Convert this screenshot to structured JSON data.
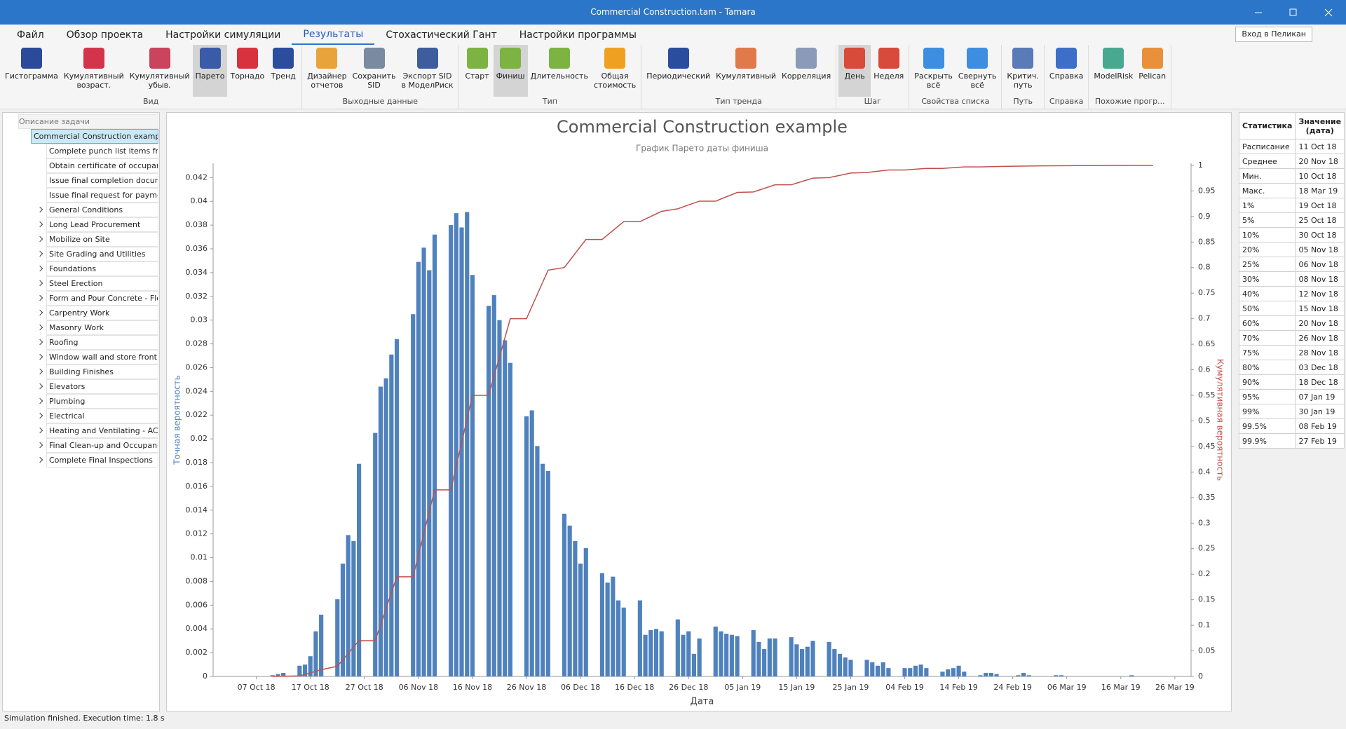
{
  "window": {
    "title": "Commercial Construction.tam - Tamara"
  },
  "menu": {
    "tabs": [
      "Файл",
      "Обзор проекта",
      "Настройки симуляции",
      "Результаты",
      "Стохастический Гант",
      "Настройки программы"
    ],
    "active": 3,
    "login": "Вход в Пеликан"
  },
  "ribbon": {
    "groups": [
      {
        "label": "Вид",
        "buttons": [
          {
            "label": "Гистограмма"
          },
          {
            "label": "Кумулятивный\nвозраст."
          },
          {
            "label": "Кумулятивный\nубыв."
          },
          {
            "label": "Парето",
            "selected": true
          },
          {
            "label": "Торнадо"
          },
          {
            "label": "Тренд"
          }
        ]
      },
      {
        "label": "Выходные данные",
        "buttons": [
          {
            "label": "Дизайнер\nотчетов"
          },
          {
            "label": "Сохранить\nSID"
          },
          {
            "label": "Экспорт SID\nв МоделРиск"
          }
        ]
      },
      {
        "label": "Тип",
        "buttons": [
          {
            "label": "Старт"
          },
          {
            "label": "Финиш",
            "selected": true
          },
          {
            "label": "Длительность"
          },
          {
            "label": "Общая\nстоимость"
          }
        ]
      },
      {
        "label": "Тип тренда",
        "buttons": [
          {
            "label": "Периодический"
          },
          {
            "label": "Кумулятивный"
          },
          {
            "label": "Корреляция"
          }
        ]
      },
      {
        "label": "Шаг",
        "buttons": [
          {
            "label": "День",
            "selected": true
          },
          {
            "label": "Неделя"
          }
        ]
      },
      {
        "label": "Свойства списка",
        "buttons": [
          {
            "label": "Раскрыть\nвсё"
          },
          {
            "label": "Свернуть\nвсё"
          }
        ]
      },
      {
        "label": "Путь",
        "buttons": [
          {
            "label": "Критич.\nпуть"
          }
        ]
      },
      {
        "label": "Справка",
        "buttons": [
          {
            "label": "Справка"
          }
        ]
      },
      {
        "label": "Похожие прогр...",
        "buttons": [
          {
            "label": "ModelRisk"
          },
          {
            "label": "Pelican"
          }
        ]
      }
    ]
  },
  "tree": {
    "header": "Описание задачи",
    "root": "Commercial Construction example",
    "children": [
      {
        "label": "Complete punch list items from..."
      },
      {
        "label": "Obtain certificate of occupancy"
      },
      {
        "label": "Issue final completion docume..."
      },
      {
        "label": "Issue final request for payment"
      },
      {
        "label": "General Conditions",
        "collapsed": true
      },
      {
        "label": "Long Lead Procurement",
        "collapsed": true
      },
      {
        "label": "Mobilize on Site",
        "collapsed": true
      },
      {
        "label": "Site Grading and Utilities",
        "collapsed": true
      },
      {
        "label": "Foundations",
        "collapsed": true
      },
      {
        "label": "Steel Erection",
        "collapsed": true
      },
      {
        "label": "Form and Pour Concrete - Floo...",
        "collapsed": true
      },
      {
        "label": "Carpentry Work",
        "collapsed": true
      },
      {
        "label": "Masonry Work",
        "collapsed": true
      },
      {
        "label": "Roofing",
        "collapsed": true
      },
      {
        "label": "Window wall and store front cl...",
        "collapsed": true
      },
      {
        "label": "Building Finishes",
        "collapsed": true
      },
      {
        "label": "Elevators",
        "collapsed": true
      },
      {
        "label": "Plumbing",
        "collapsed": true
      },
      {
        "label": "Electrical",
        "collapsed": true
      },
      {
        "label": "Heating and Ventilating - AC",
        "collapsed": true
      },
      {
        "label": "Final Clean-up and Occupancy",
        "collapsed": true
      },
      {
        "label": "Complete Final Inspections",
        "collapsed": true
      }
    ]
  },
  "chart_data": {
    "type": "bar",
    "title": "Commercial Construction example",
    "subtitle": "График Парето даты финиша",
    "xlabel": "Дата",
    "ylabel": "Точная вероятность",
    "y2label": "Кумулятивная вероятность",
    "xlim": [
      "2018-09-29",
      "2019-03-29"
    ],
    "ylim": [
      0,
      0.0432
    ],
    "y2lim": [
      0,
      1.004
    ],
    "xticks": [
      {
        "value": "2018-10-07",
        "label": "07 Oct 18"
      },
      {
        "value": "2018-10-17",
        "label": "17 Oct 18"
      },
      {
        "value": "2018-10-27",
        "label": "27 Oct 18"
      },
      {
        "value": "2018-11-06",
        "label": "06 Nov 18"
      },
      {
        "value": "2018-11-16",
        "label": "16 Nov 18"
      },
      {
        "value": "2018-11-26",
        "label": "26 Nov 18"
      },
      {
        "value": "2018-12-06",
        "label": "06 Dec 18"
      },
      {
        "value": "2018-12-16",
        "label": "16 Dec 18"
      },
      {
        "value": "2018-12-26",
        "label": "26 Dec 18"
      },
      {
        "value": "2019-01-05",
        "label": "05 Jan 19"
      },
      {
        "value": "2019-01-15",
        "label": "15 Jan 19"
      },
      {
        "value": "2019-01-25",
        "label": "25 Jan 19"
      },
      {
        "value": "2019-02-04",
        "label": "04 Feb 19"
      },
      {
        "value": "2019-02-14",
        "label": "14 Feb 19"
      },
      {
        "value": "2019-02-24",
        "label": "24 Feb 19"
      },
      {
        "value": "2019-03-06",
        "label": "06 Mar 19"
      },
      {
        "value": "2019-03-16",
        "label": "16 Mar 19"
      },
      {
        "value": "2019-03-26",
        "label": "26 Mar 19"
      }
    ],
    "yticks": [
      0,
      0.002,
      0.004,
      0.006,
      0.008,
      0.01,
      0.012,
      0.014,
      0.016,
      0.018,
      0.02,
      0.022,
      0.024,
      0.026,
      0.028,
      0.03,
      0.032,
      0.034,
      0.036,
      0.038,
      0.04,
      0.042
    ],
    "y2ticks": [
      0,
      0.05,
      0.1,
      0.15,
      0.2,
      0.25,
      0.3,
      0.35,
      0.4,
      0.45,
      0.5,
      0.55,
      0.6,
      0.65,
      0.7,
      0.75,
      0.8,
      0.85,
      0.9,
      0.95,
      1
    ],
    "series": [
      {
        "type": "bar",
        "color": "#4f81bd",
        "x": [
          "2018-10-10",
          "2018-10-11",
          "2018-10-12",
          "2018-10-15",
          "2018-10-16",
          "2018-10-17",
          "2018-10-18",
          "2018-10-19",
          "2018-10-22",
          "2018-10-23",
          "2018-10-24",
          "2018-10-25",
          "2018-10-26",
          "2018-10-29",
          "2018-10-30",
          "2018-10-31",
          "2018-11-01",
          "2018-11-02",
          "2018-11-05",
          "2018-11-06",
          "2018-11-07",
          "2018-11-08",
          "2018-11-09",
          "2018-11-12",
          "2018-11-13",
          "2018-11-14",
          "2018-11-15",
          "2018-11-16",
          "2018-11-19",
          "2018-11-20",
          "2018-11-21",
          "2018-11-22",
          "2018-11-23",
          "2018-11-26",
          "2018-11-27",
          "2018-11-28",
          "2018-11-29",
          "2018-11-30",
          "2018-12-03",
          "2018-12-04",
          "2018-12-05",
          "2018-12-06",
          "2018-12-07",
          "2018-12-10",
          "2018-12-11",
          "2018-12-12",
          "2018-12-13",
          "2018-12-14",
          "2018-12-17",
          "2018-12-18",
          "2018-12-19",
          "2018-12-20",
          "2018-12-21",
          "2018-12-24",
          "2018-12-25",
          "2018-12-26",
          "2018-12-27",
          "2018-12-28",
          "2018-12-31",
          "2019-01-01",
          "2019-01-02",
          "2019-01-03",
          "2019-01-04",
          "2019-01-07",
          "2019-01-08",
          "2019-01-09",
          "2019-01-10",
          "2019-01-11",
          "2019-01-14",
          "2019-01-15",
          "2019-01-16",
          "2019-01-17",
          "2019-01-18",
          "2019-01-21",
          "2019-01-22",
          "2019-01-23",
          "2019-01-24",
          "2019-01-25",
          "2019-01-28",
          "2019-01-29",
          "2019-01-30",
          "2019-01-31",
          "2019-02-01",
          "2019-02-04",
          "2019-02-05",
          "2019-02-06",
          "2019-02-07",
          "2019-02-08",
          "2019-02-11",
          "2019-02-12",
          "2019-02-13",
          "2019-02-14",
          "2019-02-15",
          "2019-02-18",
          "2019-02-19",
          "2019-02-20",
          "2019-02-21",
          "2019-02-25",
          "2019-02-26",
          "2019-02-27",
          "2019-03-04",
          "2019-03-05",
          "2019-03-18"
        ],
        "values": [
          0.0001,
          0.0002,
          0.0003,
          0.0009,
          0.001,
          0.0017,
          0.0038,
          0.0052,
          0.0065,
          0.0095,
          0.0119,
          0.0114,
          0.0179,
          0.0205,
          0.0244,
          0.0251,
          0.0271,
          0.0284,
          0.0305,
          0.0349,
          0.0361,
          0.0342,
          0.0372,
          0.038,
          0.039,
          0.0378,
          0.0391,
          0.0338,
          0.0312,
          0.0321,
          0.03,
          0.0283,
          0.0264,
          0.0219,
          0.0224,
          0.0194,
          0.0179,
          0.0173,
          0.0137,
          0.0127,
          0.0114,
          0.0095,
          0.0108,
          0.0087,
          0.0079,
          0.0084,
          0.0064,
          0.0058,
          0.0064,
          0.0035,
          0.0039,
          0.004,
          0.0038,
          0.0048,
          0.0035,
          0.0038,
          0.0019,
          0.0032,
          0.0042,
          0.0038,
          0.0036,
          0.0035,
          0.0034,
          0.0039,
          0.0029,
          0.0023,
          0.0032,
          0.0032,
          0.0033,
          0.0027,
          0.0023,
          0.0025,
          0.003,
          0.0029,
          0.0023,
          0.0019,
          0.0016,
          0.0014,
          0.0014,
          0.0012,
          0.0009,
          0.0012,
          0.0007,
          0.0007,
          0.0007,
          0.0009,
          0.001,
          0.0007,
          0.0004,
          0.0006,
          0.0007,
          0.0009,
          0.0004,
          0.0001,
          0.0003,
          0.0003,
          0.0002,
          0.0001,
          0.0003,
          0.0001,
          0.0001,
          0.0001,
          0.0001
        ]
      },
      {
        "type": "line",
        "color": "#c0504d",
        "axis": "y2",
        "x": [
          "2018-10-10",
          "2018-10-15",
          "2018-10-19",
          "2018-10-22",
          "2018-10-26",
          "2018-10-29",
          "2018-11-02",
          "2018-11-05",
          "2018-11-09",
          "2018-11-12",
          "2018-11-16",
          "2018-11-19",
          "2018-11-23",
          "2018-11-26",
          "2018-11-30",
          "2018-12-03",
          "2018-12-07",
          "2018-12-10",
          "2018-12-14",
          "2018-12-17",
          "2018-12-21",
          "2018-12-24",
          "2018-12-28",
          "2018-12-31",
          "2019-01-04",
          "2019-01-07",
          "2019-01-11",
          "2019-01-14",
          "2019-01-18",
          "2019-01-21",
          "2019-01-25",
          "2019-01-28",
          "2019-02-01",
          "2019-02-04",
          "2019-02-08",
          "2019-02-11",
          "2019-02-15",
          "2019-02-18",
          "2019-02-22",
          "2019-03-01",
          "2019-03-08",
          "2019-03-22"
        ],
        "values": [
          0,
          0.001,
          0.013,
          0.02,
          0.07,
          0.07,
          0.195,
          0.195,
          0.365,
          0.365,
          0.55,
          0.55,
          0.7,
          0.7,
          0.795,
          0.8,
          0.855,
          0.855,
          0.89,
          0.89,
          0.91,
          0.915,
          0.93,
          0.93,
          0.947,
          0.948,
          0.962,
          0.962,
          0.975,
          0.976,
          0.985,
          0.986,
          0.991,
          0.991,
          0.994,
          0.994,
          0.997,
          0.997,
          0.998,
          0.999,
          0.9995,
          1
        ]
      }
    ]
  },
  "stats": {
    "header": [
      "Статистика",
      "Значение\n(дата)"
    ],
    "rows": [
      [
        "Расписание",
        "11 Oct 18"
      ],
      [
        "Среднее",
        "20 Nov 18"
      ],
      [
        "Мин.",
        "10 Oct 18"
      ],
      [
        "Макс.",
        "18 Mar 19"
      ],
      [
        "1%",
        "19 Oct 18"
      ],
      [
        "5%",
        "25 Oct 18"
      ],
      [
        "10%",
        "30 Oct 18"
      ],
      [
        "20%",
        "05 Nov 18"
      ],
      [
        "25%",
        "06 Nov 18"
      ],
      [
        "30%",
        "08 Nov 18"
      ],
      [
        "40%",
        "12 Nov 18"
      ],
      [
        "50%",
        "15 Nov 18"
      ],
      [
        "60%",
        "20 Nov 18"
      ],
      [
        "70%",
        "26 Nov 18"
      ],
      [
        "75%",
        "28 Nov 18"
      ],
      [
        "80%",
        "03 Dec 18"
      ],
      [
        "90%",
        "18 Dec 18"
      ],
      [
        "95%",
        "07 Jan 19"
      ],
      [
        "99%",
        "30 Jan 19"
      ],
      [
        "99.5%",
        "08 Feb 19"
      ],
      [
        "99.9%",
        "27 Feb 19"
      ]
    ]
  },
  "status": "Simulation finished. Execution time: 1.8 s"
}
